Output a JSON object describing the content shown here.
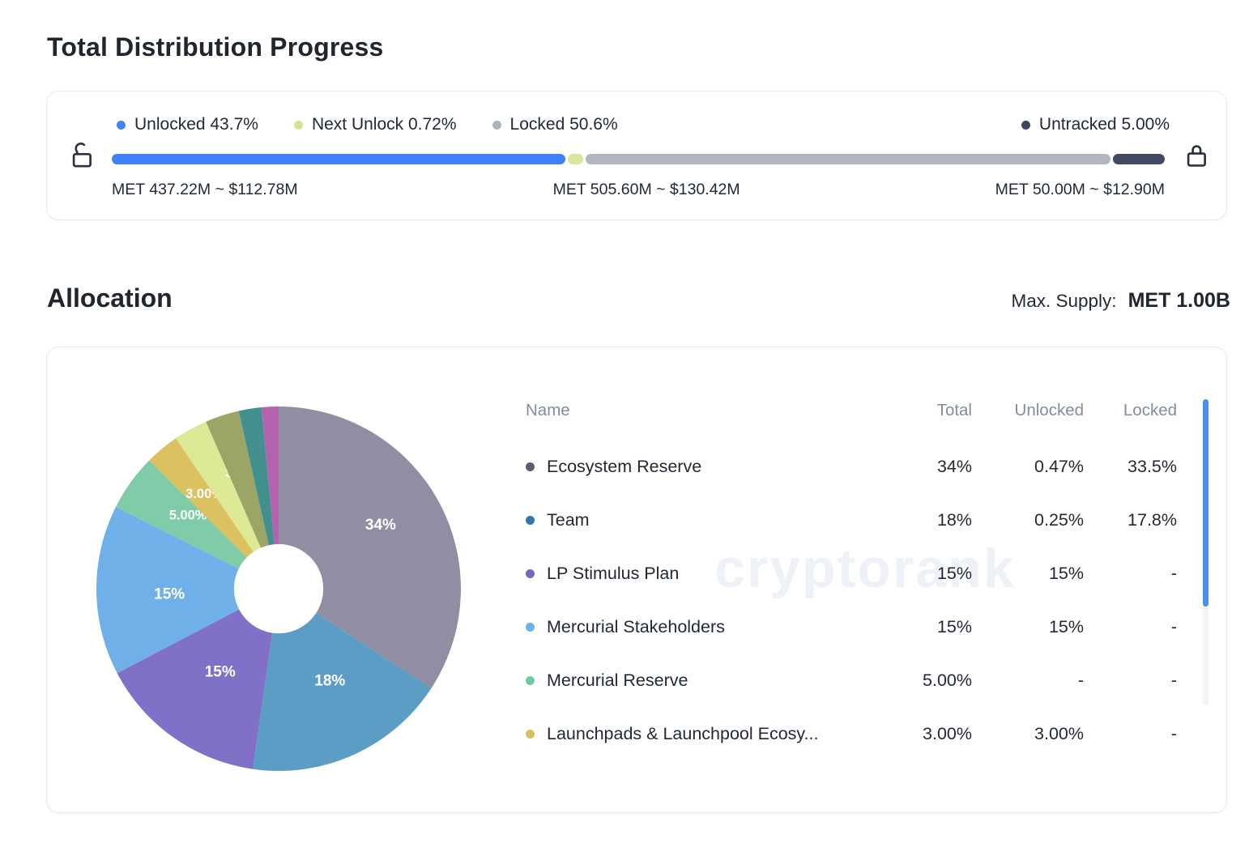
{
  "header": {
    "title": "Total Distribution Progress"
  },
  "progress": {
    "legend": [
      {
        "label": "Unlocked 43.7%",
        "color": "#4184f4"
      },
      {
        "label": "Next Unlock 0.72%",
        "color": "#d5e492"
      },
      {
        "label": "Locked 50.6%",
        "color": "#aeb3bf"
      },
      {
        "label": "Untracked 5.00%",
        "color": "#3f475f"
      }
    ],
    "segments": [
      {
        "name": "unlocked",
        "pct": 43.7,
        "color": "#3e82f7"
      },
      {
        "name": "next-unlock",
        "pct": 0.72,
        "color": "#d7e69c"
      },
      {
        "name": "locked",
        "pct": 50.6,
        "color": "#b2b6c1"
      },
      {
        "name": "untracked",
        "pct": 5.0,
        "color": "#414a63"
      }
    ],
    "amounts": {
      "unlocked": "MET 437.22M ~ $112.78M",
      "locked": "MET 505.60M ~ $130.42M",
      "untracked": "MET 50.00M ~ $12.90M"
    }
  },
  "allocation": {
    "title": "Allocation",
    "max_supply_label": "Max. Supply:",
    "max_supply_value": "MET 1.00B",
    "watermark": "cryptorank",
    "table": {
      "columns": [
        "Name",
        "Total",
        "Unlocked",
        "Locked"
      ],
      "rows": [
        {
          "name": "Ecosystem Reserve",
          "dot": "#5d5c74",
          "total": "34%",
          "unlocked": "0.47%",
          "locked": "33.5%"
        },
        {
          "name": "Team",
          "dot": "#3077b4",
          "total": "18%",
          "unlocked": "0.25%",
          "locked": "17.8%"
        },
        {
          "name": "LP Stimulus Plan",
          "dot": "#7a63c6",
          "total": "15%",
          "unlocked": "15%",
          "locked": "-"
        },
        {
          "name": "Mercurial Stakeholders",
          "dot": "#6cb3ee",
          "total": "15%",
          "unlocked": "15%",
          "locked": "-"
        },
        {
          "name": "Mercurial Reserve",
          "dot": "#72c9a2",
          "total": "5.00%",
          "unlocked": "-",
          "locked": "-"
        },
        {
          "name": "Launchpads & Launchpool Ecosy...",
          "dot": "#d9c05e",
          "total": "3.00%",
          "unlocked": "3.00%",
          "locked": "-"
        }
      ]
    }
  },
  "chart_data": {
    "type": "pie",
    "title": "Allocation",
    "legend_position": "none",
    "donut_hole_ratio": 0.245,
    "start_angle_deg": 0,
    "direction": "clockwise",
    "slices": [
      {
        "name": "Ecosystem Reserve",
        "value": 34,
        "color": "#8f8ea3",
        "label": "34%",
        "label_size": "lg",
        "label_r": 0.66,
        "label_angle": 58
      },
      {
        "name": "Team",
        "value": 18,
        "color": "#5b9dc5",
        "label": "18%",
        "label_size": "lg",
        "label_r": 0.58,
        "label_angle": 151
      },
      {
        "name": "LP Stimulus Plan",
        "value": 15,
        "color": "#8070c8",
        "label": "15%",
        "label_size": "lg",
        "label_r": 0.56,
        "label_angle": 215
      },
      {
        "name": "Mercurial Stakeholders",
        "value": 15,
        "color": "#6fb0e8",
        "label": "15%",
        "label_size": "lg",
        "label_r": 0.6,
        "label_angle": 267
      },
      {
        "name": "Mercurial Reserve",
        "value": 5,
        "color": "#80cca8",
        "label": "5.00%",
        "label_r": 0.64,
        "label_angle": 309
      },
      {
        "name": "Launchpads & Launchpool Ecosy...",
        "value": 3,
        "color": "#dbc160",
        "label": "3.00%",
        "label_r": 0.66,
        "label_angle": 322
      },
      {
        "name": "",
        "value": 3,
        "color": "#dde995",
        "label": "3.00%",
        "label_r": 0.66,
        "label_angle": 343.5
      },
      {
        "name": "",
        "value": 3,
        "color": "#9da566",
        "label": null
      },
      {
        "name": "",
        "value": 2,
        "color": "#41908e",
        "label": null
      },
      {
        "name": "",
        "value": 1.5,
        "color": "#b463af",
        "label": null
      }
    ]
  }
}
